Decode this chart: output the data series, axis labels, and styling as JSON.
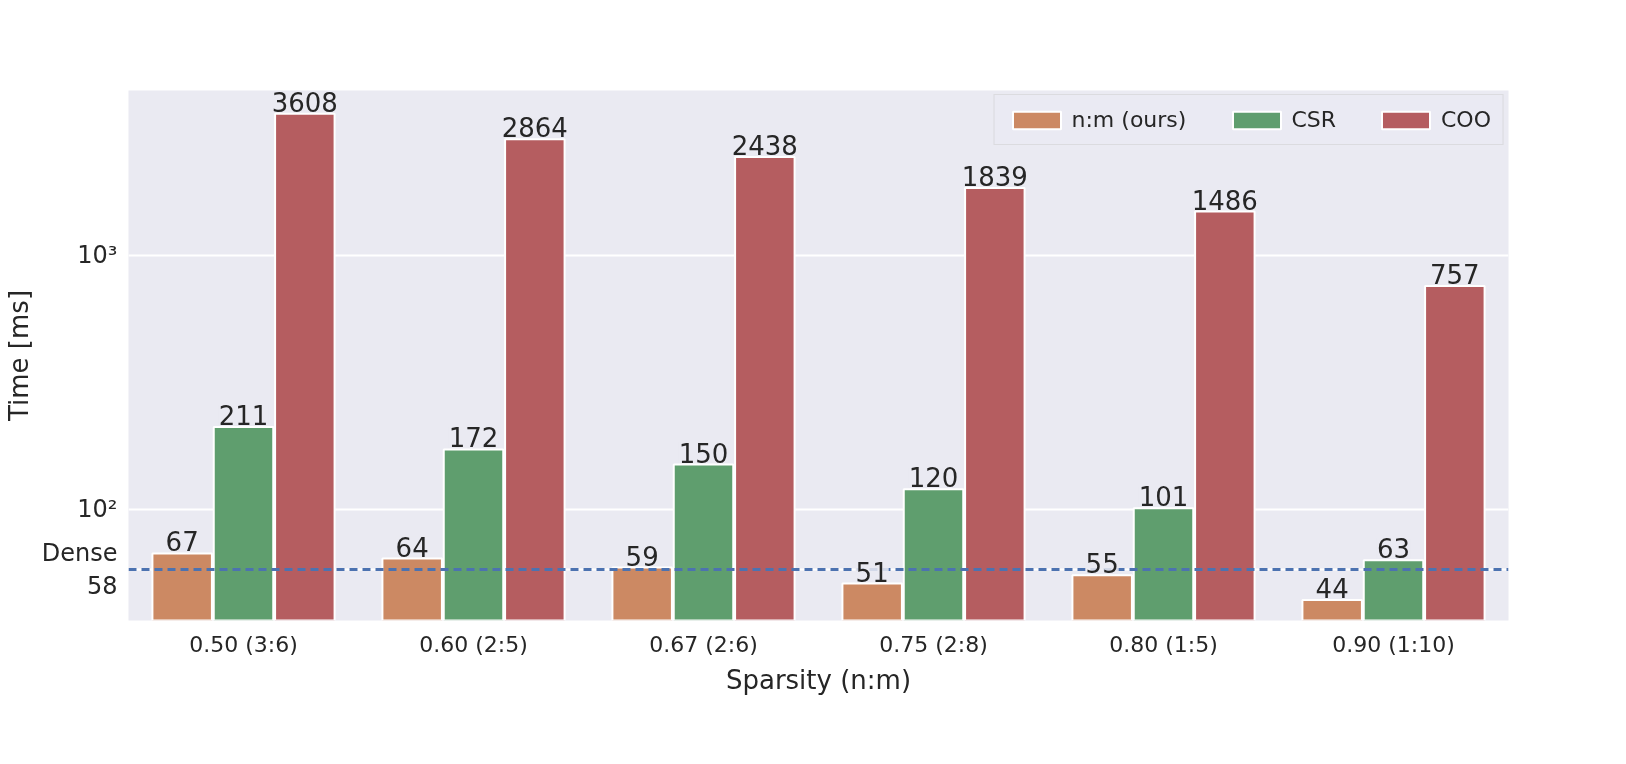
{
  "chart_data": {
    "type": "bar",
    "xlabel": "Sparsity (n:m)",
    "ylabel": "Time [ms]",
    "categories": [
      "0.50 (3:6)",
      "0.60 (2:5)",
      "0.67 (2:6)",
      "0.75 (2:8)",
      "0.80 (1:5)",
      "0.90 (1:10)"
    ],
    "series": [
      {
        "name": "n:m (ours)",
        "color": "#cc8963",
        "values": [
          67,
          64,
          59,
          51,
          55,
          44
        ]
      },
      {
        "name": "CSR",
        "color": "#5f9e6e",
        "values": [
          211,
          172,
          150,
          120,
          101,
          63
        ]
      },
      {
        "name": "COO",
        "color": "#b55d60",
        "values": [
          3608,
          2864,
          2438,
          1839,
          1486,
          757
        ]
      }
    ],
    "log": "y",
    "ylim": [
      36.5,
      4450
    ],
    "yticks": [
      {
        "value": 58,
        "label": "Dense\n58"
      },
      {
        "value": 100,
        "label": "10²"
      },
      {
        "value": 1000,
        "label": "10³"
      }
    ],
    "ref_lines": [
      {
        "axis": "y",
        "value": 58,
        "color": "#4c72b0",
        "line_style": "dashed"
      }
    ],
    "data_labels": true,
    "grid": "y",
    "legend": "top right"
  }
}
